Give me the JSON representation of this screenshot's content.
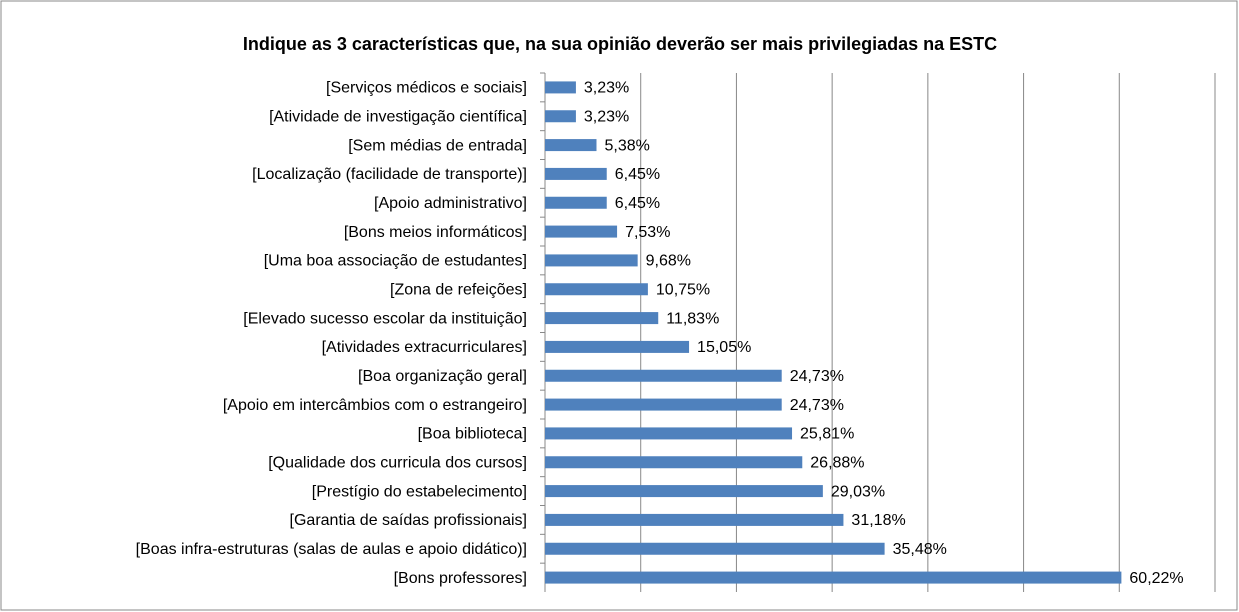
{
  "chart_data": {
    "type": "bar",
    "orientation": "horizontal",
    "title": "Indique as 3 características que, na sua opinião deverão ser mais privilegiadas na ESTC",
    "categories": [
      "[Serviços médicos e sociais]",
      "[Atividade de investigação científica]",
      "[Sem médias de entrada]",
      "[Localização (facilidade de transporte)]",
      "[Apoio administrativo]",
      "[Bons meios informáticos]",
      "[Uma boa associação de estudantes]",
      "[Zona de refeições]",
      "[Elevado sucesso escolar da instituição]",
      "[Atividades extracurriculares]",
      "[Boa organização geral]",
      "[Apoio em intercâmbios com o estrangeiro]",
      "[Boa biblioteca]",
      "[Qualidade dos curricula dos cursos]",
      "[Prestígio do estabelecimento]",
      "[Garantia de saídas profissionais]",
      "[Boas infra-estruturas (salas de aulas e apoio didático)]",
      "[Bons professores]"
    ],
    "values": [
      3.23,
      3.23,
      5.38,
      6.45,
      6.45,
      7.53,
      9.68,
      10.75,
      11.83,
      15.05,
      24.73,
      24.73,
      25.81,
      26.88,
      29.03,
      31.18,
      35.48,
      60.22
    ],
    "value_labels": [
      "3,23%",
      "3,23%",
      "5,38%",
      "6,45%",
      "6,45%",
      "7,53%",
      "9,68%",
      "10,75%",
      "11,83%",
      "15,05%",
      "24,73%",
      "24,73%",
      "25,81%",
      "26,88%",
      "29,03%",
      "31,18%",
      "35,48%",
      "60,22%"
    ],
    "color": "#4f81bd",
    "xlim": [
      0,
      70
    ],
    "xticks": [
      0,
      10,
      20,
      30,
      40,
      50,
      60,
      70
    ],
    "grid": true
  }
}
